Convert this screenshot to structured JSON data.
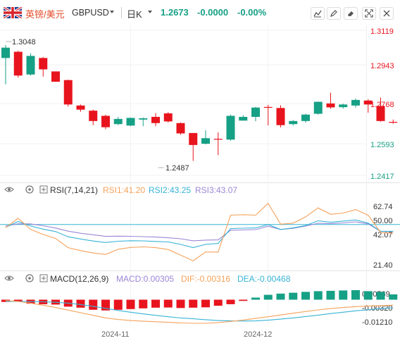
{
  "header": {
    "pair_label": "英镑/美元",
    "symbol": "GBPUSD",
    "period": "日K",
    "price": "1.2673",
    "change": "-0.0000",
    "change_pct": "-0.00%",
    "tool_icons": [
      "draw-line-icon",
      "pencil-icon",
      "eraser-icon",
      "expand-icon",
      "settings-icon"
    ]
  },
  "colors": {
    "up": "#16a085",
    "down": "#e8141d",
    "rsi1": "#f5a25b",
    "rsi2": "#37b3d6",
    "rsi3": "#9b86d6",
    "macd": "#9b86d6",
    "dif": "#f5a25b",
    "dea": "#37b3d6",
    "ref": "#37b3d6"
  },
  "main_panel": {
    "price_ticks": [
      "1.3119",
      "1.2943",
      "1.2768",
      "1.2593",
      "1.2417"
    ],
    "high_label": "1.3048",
    "low_label": "1.2487"
  },
  "rsi_panel": {
    "label": "RSI(7,14,21)",
    "rsi1_label": "RSI1:41.20",
    "rsi2_label": "RSI2:43.25",
    "rsi3_label": "RSI3:43.07",
    "ticks": [
      "62.74",
      "50.00",
      "42.07",
      "21.40"
    ]
  },
  "macd_panel": {
    "label": "MACD(12,26,9)",
    "macd_label": "MACD:0.00305",
    "dif_label": "DIF:-0.00316",
    "dea_label": "DEA:-0.00468",
    "ticks": [
      "0.00569",
      "-0.00320",
      "-0.01210"
    ]
  },
  "x_axis": {
    "labels": [
      "2024-11",
      "2024-12"
    ]
  },
  "chart_data": {
    "type": "candlestick",
    "title": "英镑/美元 GBPUSD 日K",
    "price_range": [
      1.2417,
      1.3119
    ],
    "candles": [
      {
        "o": 1.2985,
        "h": 1.3048,
        "l": 1.2858,
        "c": 1.3035
      },
      {
        "o": 1.3015,
        "h": 1.302,
        "l": 1.289,
        "c": 1.29
      },
      {
        "o": 1.2905,
        "h": 1.3008,
        "l": 1.29,
        "c": 1.2995
      },
      {
        "o": 1.2985,
        "h": 1.299,
        "l": 1.2895,
        "c": 1.293
      },
      {
        "o": 1.292,
        "h": 1.2918,
        "l": 1.287,
        "c": 1.287
      },
      {
        "o": 1.2878,
        "h": 1.288,
        "l": 1.275,
        "c": 1.276
      },
      {
        "o": 1.2755,
        "h": 1.276,
        "l": 1.2725,
        "c": 1.2735
      },
      {
        "o": 1.273,
        "h": 1.2735,
        "l": 1.266,
        "c": 1.268
      },
      {
        "o": 1.2705,
        "h": 1.271,
        "l": 1.264,
        "c": 1.265
      },
      {
        "o": 1.2665,
        "h": 1.27,
        "l": 1.266,
        "c": 1.269
      },
      {
        "o": 1.2658,
        "h": 1.2697,
        "l": 1.2655,
        "c": 1.2695
      },
      {
        "o": 1.2687,
        "h": 1.2697,
        "l": 1.2655,
        "c": 1.2693
      },
      {
        "o": 1.27,
        "h": 1.2718,
        "l": 1.2655,
        "c": 1.267
      },
      {
        "o": 1.2717,
        "h": 1.2723,
        "l": 1.2673,
        "c": 1.2678
      },
      {
        "o": 1.267,
        "h": 1.2673,
        "l": 1.2614,
        "c": 1.262
      },
      {
        "o": 1.2622,
        "h": 1.2622,
        "l": 1.2487,
        "c": 1.2564
      },
      {
        "o": 1.257,
        "h": 1.2635,
        "l": 1.2567,
        "c": 1.2597
      },
      {
        "o": 1.2594,
        "h": 1.2625,
        "l": 1.2515,
        "c": 1.2593
      },
      {
        "o": 1.259,
        "h": 1.2711,
        "l": 1.2585,
        "c": 1.2705
      },
      {
        "o": 1.2682,
        "h": 1.2708,
        "l": 1.2682,
        "c": 1.27
      },
      {
        "o": 1.27,
        "h": 1.2749,
        "l": 1.2679,
        "c": 1.2745
      },
      {
        "o": 1.2748,
        "h": 1.2758,
        "l": 1.2659,
        "c": 1.2744
      },
      {
        "o": 1.2743,
        "h": 1.2756,
        "l": 1.2649,
        "c": 1.266
      },
      {
        "o": 1.2665,
        "h": 1.2685,
        "l": 1.2658,
        "c": 1.268
      },
      {
        "o": 1.268,
        "h": 1.2715,
        "l": 1.2672,
        "c": 1.2711
      },
      {
        "o": 1.2715,
        "h": 1.2774,
        "l": 1.2711,
        "c": 1.2773
      },
      {
        "o": 1.2765,
        "h": 1.2817,
        "l": 1.2739,
        "c": 1.2746
      },
      {
        "o": 1.2747,
        "h": 1.2764,
        "l": 1.274,
        "c": 1.276
      },
      {
        "o": 1.2755,
        "h": 1.2789,
        "l": 1.2745,
        "c": 1.2782
      },
      {
        "o": 1.2779,
        "h": 1.2786,
        "l": 1.272,
        "c": 1.276
      },
      {
        "o": 1.2753,
        "h": 1.2793,
        "l": 1.2677,
        "c": 1.268
      },
      {
        "o": 1.2676,
        "h": 1.2687,
        "l": 1.2667,
        "c": 1.2673
      }
    ],
    "rsi_range": [
      10.63,
      74.33
    ],
    "rsi_reference": 50.0,
    "rsi1": [
      46.8,
      56.1,
      45.1,
      40.1,
      36.1,
      27.0,
      24.1,
      21.7,
      20.2,
      25.4,
      27.2,
      27.8,
      27.0,
      25.2,
      19.6,
      14.0,
      22.7,
      22.7,
      59.3,
      59.8,
      59.3,
      71.0,
      50.3,
      51.4,
      57.6,
      66.5,
      60.1,
      61.4,
      64.8,
      59.2,
      42.1,
      41.2
    ],
    "rsi2": [
      47.1,
      53.0,
      48.5,
      45.4,
      43.0,
      37.8,
      35.6,
      33.6,
      32.1,
      33.4,
      33.9,
      33.7,
      33.2,
      32.7,
      30.2,
      27.1,
      30.2,
      31.2,
      45.9,
      46.3,
      46.6,
      50.0,
      45.1,
      46.6,
      49.0,
      53.7,
      52.2,
      53.4,
      54.5,
      51.5,
      43.3,
      43.25
    ],
    "rsi3": [
      48.6,
      50.7,
      50.6,
      48.8,
      46.5,
      43.4,
      41.3,
      39.8,
      38.2,
      38.4,
      38.3,
      37.9,
      37.5,
      36.8,
      35.8,
      33.8,
      34.5,
      34.7,
      44.3,
      44.6,
      44.9,
      48.3,
      45.1,
      46.2,
      48.4,
      51.2,
      50.8,
      51.6,
      52.6,
      50.7,
      43.1,
      43.07
    ],
    "macd_range": [
      -0.0148,
      0.0075
    ],
    "macd_hist": [
      -0.0013,
      -0.0012,
      -0.0023,
      -0.0026,
      -0.0028,
      -0.004,
      -0.0046,
      -0.0058,
      -0.0062,
      -0.0058,
      -0.0054,
      -0.005,
      -0.0046,
      -0.0045,
      -0.0048,
      -0.0046,
      -0.0044,
      -0.0035,
      -0.0026,
      -0.0007,
      0.0012,
      0.0028,
      0.0035,
      0.004,
      0.0045,
      0.0049,
      0.0051,
      0.0053,
      0.0055,
      0.0049,
      0.0045,
      0.00305
    ],
    "macd_dif": [
      -0.0005,
      -0.001,
      -0.002,
      -0.0032,
      -0.0045,
      -0.006,
      -0.0075,
      -0.009,
      -0.0105,
      -0.0114,
      -0.012,
      -0.0124,
      -0.0127,
      -0.013,
      -0.0134,
      -0.0136,
      -0.0136,
      -0.0132,
      -0.0125,
      -0.0117,
      -0.0108,
      -0.0098,
      -0.0088,
      -0.0078,
      -0.0068,
      -0.0059,
      -0.0051,
      -0.0045,
      -0.004,
      -0.0036,
      -0.0034,
      -0.00316
    ],
    "macd_dea": [
      -0.001,
      -0.001,
      -0.0011,
      -0.0012,
      -0.0015,
      -0.002,
      -0.0028,
      -0.0038,
      -0.005,
      -0.0062,
      -0.0072,
      -0.0082,
      -0.009,
      -0.0098,
      -0.0105,
      -0.011,
      -0.0115,
      -0.012,
      -0.0122,
      -0.0123,
      -0.0122,
      -0.0118,
      -0.0112,
      -0.0105,
      -0.0097,
      -0.0089,
      -0.008,
      -0.0072,
      -0.0064,
      -0.0058,
      -0.0051,
      -0.00468
    ],
    "x_tick_indices": [
      10,
      21
    ]
  }
}
